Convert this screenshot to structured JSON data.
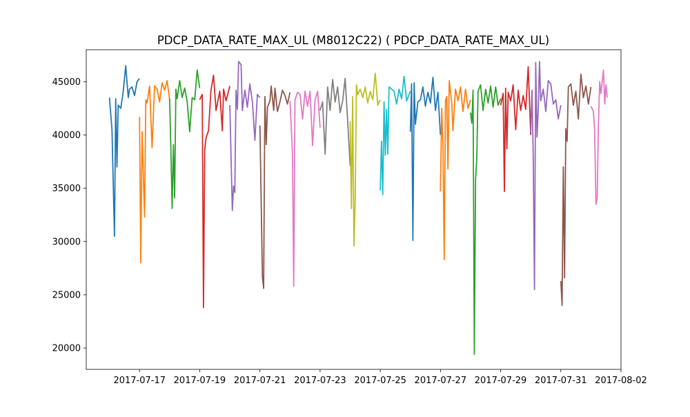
{
  "chart_data": {
    "type": "line",
    "title": "PDCP_DATA_RATE_MAX_UL (M8012C22) ( PDCP_DATA_RATE_MAX_UL)",
    "xlabel": "",
    "ylabel": "",
    "x_axis_type": "date",
    "xlim": [
      "2017-07-15 05:30",
      "2017-08-02 00:00"
    ],
    "ylim": [
      18000,
      48000
    ],
    "x_ticks": [
      "2017-07-17",
      "2017-07-19",
      "2017-07-21",
      "2017-07-23",
      "2017-07-25",
      "2017-07-27",
      "2017-07-29",
      "2017-07-31",
      "2017-08-02"
    ],
    "y_ticks": [
      20000,
      25000,
      30000,
      35000,
      40000,
      45000
    ],
    "grid": false,
    "legend": "none",
    "colors": [
      "#1f77b4",
      "#ff7f0e",
      "#2ca02c",
      "#d62728",
      "#9467bd",
      "#8c564b",
      "#e377c2",
      "#7f7f7f",
      "#bcbd22",
      "#17becf"
    ],
    "series": [
      {
        "x": [
          "2017-07-16 00:00",
          "2017-07-16 02:00",
          "2017-07-16 04:00",
          "2017-07-16 05:00",
          "2017-07-16 06:00",
          "2017-07-16 07:00",
          "2017-07-16 09:00",
          "2017-07-16 11:00",
          "2017-07-16 13:00",
          "2017-07-16 15:00",
          "2017-07-16 16:00",
          "2017-07-16 18:00",
          "2017-07-16 20:00",
          "2017-07-16 22:00",
          "2017-07-17 00:00"
        ],
        "values": [
          43500,
          40500,
          30500,
          43400,
          37000,
          42800,
          42500,
          44100,
          46500,
          43500,
          44300,
          44500,
          43700,
          45000,
          45300
        ]
      },
      {
        "x": [
          "2017-07-17 00:00",
          "2017-07-17 01:00",
          "2017-07-17 02:00",
          "2017-07-17 04:00",
          "2017-07-17 05:00",
          "2017-07-17 06:00",
          "2017-07-17 08:00",
          "2017-07-17 10:00",
          "2017-07-17 12:00",
          "2017-07-17 14:00",
          "2017-07-17 16:00",
          "2017-07-17 18:00",
          "2017-07-17 20:00",
          "2017-07-17 22:00",
          "2017-07-18 00:00"
        ],
        "values": [
          41700,
          28000,
          40300,
          32300,
          43300,
          43000,
          44600,
          38800,
          44600,
          44300,
          43100,
          44900,
          44200,
          45100,
          43300
        ]
      },
      {
        "x": [
          "2017-07-18 00:00",
          "2017-07-18 01:00",
          "2017-07-18 02:00",
          "2017-07-18 03:00",
          "2017-07-18 04:00",
          "2017-07-18 05:00",
          "2017-07-18 06:00",
          "2017-07-18 08:00",
          "2017-07-18 10:00",
          "2017-07-18 12:00",
          "2017-07-18 14:00",
          "2017-07-18 16:00",
          "2017-07-18 18:00",
          "2017-07-18 20:00",
          "2017-07-18 22:00",
          "2017-07-19 00:00"
        ],
        "values": [
          43400,
          38500,
          33100,
          39100,
          34100,
          44300,
          43400,
          45100,
          43500,
          44400,
          43100,
          40300,
          43500,
          43300,
          46100,
          44400
        ]
      },
      {
        "x": [
          "2017-07-19 00:00",
          "2017-07-19 02:00",
          "2017-07-19 03:00",
          "2017-07-19 04:00",
          "2017-07-19 05:00",
          "2017-07-19 07:00",
          "2017-07-19 09:00",
          "2017-07-19 11:00",
          "2017-07-19 13:00",
          "2017-07-19 14:00",
          "2017-07-19 16:00",
          "2017-07-19 18:00",
          "2017-07-19 19:00",
          "2017-07-19 21:00",
          "2017-07-20 00:00"
        ],
        "values": [
          43300,
          43800,
          23800,
          38600,
          39700,
          40400,
          44200,
          45600,
          42300,
          42900,
          44100,
          40400,
          44300,
          43200,
          44600
        ]
      },
      {
        "x": [
          "2017-07-20 00:00",
          "2017-07-20 02:00",
          "2017-07-20 03:00",
          "2017-07-20 04:00",
          "2017-07-20 05:00",
          "2017-07-20 06:00",
          "2017-07-20 07:00",
          "2017-07-20 09:00",
          "2017-07-20 10:00",
          "2017-07-20 12:00",
          "2017-07-20 14:00",
          "2017-07-20 16:00",
          "2017-07-20 18:00",
          "2017-07-20 20:00",
          "2017-07-20 22:00",
          "2017-07-21 00:00"
        ],
        "values": [
          42800,
          32900,
          35200,
          34600,
          44200,
          42400,
          46900,
          46600,
          42300,
          44200,
          42600,
          44800,
          43100,
          39500,
          43800,
          43500
        ]
      },
      {
        "x": [
          "2017-07-21 00:00",
          "2017-07-21 02:00",
          "2017-07-21 03:00",
          "2017-07-21 04:00",
          "2017-07-21 05:00",
          "2017-07-21 06:00",
          "2017-07-21 08:00",
          "2017-07-21 09:00",
          "2017-07-21 11:00",
          "2017-07-21 12:00",
          "2017-07-21 14:00",
          "2017-07-21 16:00",
          "2017-07-21 18:00",
          "2017-07-21 20:00",
          "2017-07-21 22:00",
          "2017-07-22 00:00"
        ],
        "values": [
          40900,
          26700,
          25600,
          43600,
          39100,
          42600,
          43200,
          44600,
          42300,
          44400,
          42200,
          43100,
          44200,
          43700,
          42900,
          44000
        ]
      },
      {
        "x": [
          "2017-07-22 00:00",
          "2017-07-22 02:00",
          "2017-07-22 03:00",
          "2017-07-22 04:00",
          "2017-07-22 06:00",
          "2017-07-22 08:00",
          "2017-07-22 10:00",
          "2017-07-22 12:00",
          "2017-07-22 14:00",
          "2017-07-22 16:00",
          "2017-07-22 18:00",
          "2017-07-22 20:00",
          "2017-07-22 22:00",
          "2017-07-23 00:00"
        ],
        "values": [
          43200,
          38300,
          25800,
          43300,
          44000,
          43800,
          41500,
          44100,
          42700,
          44100,
          39000,
          43300,
          44100,
          40700
        ]
      },
      {
        "x": [
          "2017-07-23 00:00",
          "2017-07-23 02:00",
          "2017-07-23 04:00",
          "2017-07-23 06:00",
          "2017-07-23 08:00",
          "2017-07-23 10:00",
          "2017-07-23 12:00",
          "2017-07-23 14:00",
          "2017-07-23 16:00",
          "2017-07-23 18:00",
          "2017-07-23 20:00",
          "2017-07-23 22:00",
          "2017-07-24 00:00"
        ],
        "values": [
          42300,
          43100,
          38200,
          44500,
          42300,
          45200,
          43100,
          44500,
          42100,
          43200,
          45300,
          41300,
          37100
        ]
      },
      {
        "x": [
          "2017-07-24 00:00",
          "2017-07-24 01:00",
          "2017-07-24 02:00",
          "2017-07-24 03:00",
          "2017-07-24 04:00",
          "2017-07-24 05:00",
          "2017-07-24 06:00",
          "2017-07-24 08:00",
          "2017-07-24 10:00",
          "2017-07-24 12:00",
          "2017-07-24 14:00",
          "2017-07-24 16:00",
          "2017-07-24 18:00",
          "2017-07-24 20:00",
          "2017-07-24 22:00",
          "2017-07-25 00:00"
        ],
        "values": [
          41300,
          33100,
          43600,
          29600,
          34000,
          44700,
          43800,
          44300,
          43500,
          44500,
          43000,
          44100,
          43300,
          45800,
          42800,
          43300
        ]
      },
      {
        "x": [
          "2017-07-25 00:00",
          "2017-07-25 01:00",
          "2017-07-25 02:00",
          "2017-07-25 03:00",
          "2017-07-25 04:00",
          "2017-07-25 05:00",
          "2017-07-25 06:00",
          "2017-07-25 07:00",
          "2017-07-25 09:00",
          "2017-07-25 11:00",
          "2017-07-25 13:00",
          "2017-07-25 15:00",
          "2017-07-25 17:00",
          "2017-07-25 19:00",
          "2017-07-25 21:00",
          "2017-07-26 00:00"
        ],
        "values": [
          34800,
          39400,
          34400,
          43100,
          38100,
          42400,
          38200,
          44500,
          44300,
          44100,
          42900,
          44300,
          43400,
          45500,
          43200,
          44100
        ]
      },
      {
        "x": [
          "2017-07-26 00:00",
          "2017-07-26 01:00",
          "2017-07-26 02:00",
          "2017-07-26 03:00",
          "2017-07-26 04:00",
          "2017-07-26 06:00",
          "2017-07-26 08:00",
          "2017-07-26 10:00",
          "2017-07-26 12:00",
          "2017-07-26 14:00",
          "2017-07-26 16:00",
          "2017-07-26 18:00",
          "2017-07-26 20:00",
          "2017-07-26 22:00",
          "2017-07-27 00:00"
        ],
        "values": [
          40300,
          44800,
          30100,
          44900,
          41000,
          43100,
          43300,
          44500,
          42700,
          44000,
          43000,
          45400,
          42300,
          44000,
          40000
        ]
      },
      {
        "x": [
          "2017-07-27 00:00",
          "2017-07-27 01:00",
          "2017-07-27 02:00",
          "2017-07-27 03:00",
          "2017-07-27 04:00",
          "2017-07-27 05:00",
          "2017-07-27 06:00",
          "2017-07-27 07:00",
          "2017-07-27 09:00",
          "2017-07-27 10:00",
          "2017-07-27 12:00",
          "2017-07-27 14:00",
          "2017-07-27 16:00",
          "2017-07-27 18:00",
          "2017-07-27 20:00",
          "2017-07-27 22:00",
          "2017-07-28 00:00"
        ],
        "values": [
          34700,
          42500,
          39000,
          28300,
          43200,
          43600,
          36800,
          45100,
          43000,
          40400,
          44300,
          43200,
          44500,
          42200,
          44300,
          42500,
          43300
        ]
      },
      {
        "x": [
          "2017-07-28 00:00",
          "2017-07-28 01:00",
          "2017-07-28 02:00",
          "2017-07-28 03:00",
          "2017-07-28 04:00",
          "2017-07-28 05:00",
          "2017-07-28 06:00",
          "2017-07-28 08:00",
          "2017-07-28 10:00",
          "2017-07-28 12:00",
          "2017-07-28 14:00",
          "2017-07-28 16:00",
          "2017-07-28 18:00",
          "2017-07-28 20:00",
          "2017-07-28 22:00",
          "2017-07-29 00:00"
        ],
        "values": [
          42100,
          41100,
          44200,
          19400,
          35800,
          37800,
          44100,
          44700,
          42300,
          44300,
          43000,
          44600,
          42600,
          44500,
          42800,
          43400
        ]
      },
      {
        "x": [
          "2017-07-29 00:00",
          "2017-07-29 02:00",
          "2017-07-29 03:00",
          "2017-07-29 04:00",
          "2017-07-29 05:00",
          "2017-07-29 06:00",
          "2017-07-29 08:00",
          "2017-07-29 10:00",
          "2017-07-29 12:00",
          "2017-07-29 14:00",
          "2017-07-29 16:00",
          "2017-07-29 18:00",
          "2017-07-29 20:00",
          "2017-07-29 22:00",
          "2017-07-30 00:00"
        ],
        "values": [
          42800,
          43900,
          34700,
          44400,
          38700,
          44000,
          43200,
          44700,
          40500,
          44200,
          42300,
          43700,
          42400,
          46400,
          40000
        ]
      },
      {
        "x": [
          "2017-07-30 00:00",
          "2017-07-30 01:00",
          "2017-07-30 02:00",
          "2017-07-30 03:00",
          "2017-07-30 04:00",
          "2017-07-30 05:00",
          "2017-07-30 06:00",
          "2017-07-30 07:00",
          "2017-07-30 08:00",
          "2017-07-30 10:00",
          "2017-07-30 12:00",
          "2017-07-30 14:00",
          "2017-07-30 16:00",
          "2017-07-30 18:00",
          "2017-07-30 20:00",
          "2017-07-30 22:00",
          "2017-07-31 00:00"
        ],
        "values": [
          40200,
          44200,
          38000,
          25500,
          46800,
          39800,
          42500,
          46900,
          43200,
          44300,
          42200,
          45100,
          44800,
          42900,
          43300,
          41500,
          42800
        ]
      },
      {
        "x": [
          "2017-07-31 00:00",
          "2017-07-31 01:00",
          "2017-07-31 02:00",
          "2017-07-31 03:00",
          "2017-07-31 04:00",
          "2017-07-31 05:00",
          "2017-07-31 06:00",
          "2017-07-31 08:00",
          "2017-07-31 10:00",
          "2017-07-31 12:00",
          "2017-07-31 14:00",
          "2017-07-31 16:00",
          "2017-07-31 18:00",
          "2017-07-31 20:00",
          "2017-07-31 22:00",
          "2017-08-01 00:00"
        ],
        "values": [
          26300,
          24000,
          37000,
          26600,
          40600,
          39400,
          44500,
          44800,
          42800,
          44100,
          41500,
          45700,
          43500,
          44600,
          42900,
          44500
        ]
      },
      {
        "x": [
          "2017-08-01 00:00",
          "2017-08-01 02:00",
          "2017-08-01 03:00",
          "2017-08-01 04:00",
          "2017-08-01 05:00",
          "2017-08-01 06:00",
          "2017-08-01 07:00",
          "2017-08-01 08:00",
          "2017-08-01 10:00",
          "2017-08-01 11:00",
          "2017-08-01 12:00",
          "2017-08-01 13:00"
        ],
        "values": [
          42700,
          42200,
          40500,
          33500,
          34100,
          41000,
          45000,
          43900,
          46100,
          42900,
          44700,
          43500
        ]
      }
    ]
  }
}
